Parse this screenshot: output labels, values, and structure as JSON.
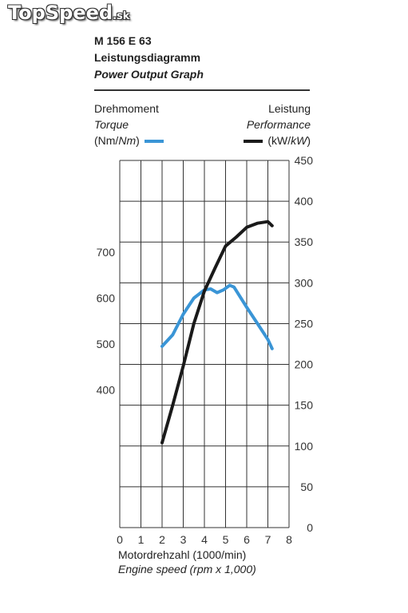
{
  "watermark": {
    "main": "TopSpeed",
    "tld": ".sk"
  },
  "header": {
    "engine": "M 156 E 63",
    "title_de": "Leistungsdiagramm",
    "title_en": "Power Output Graph"
  },
  "legend": {
    "left_de": "Drehmoment",
    "left_en": "Torque",
    "left_unit_prefix": "(Nm/",
    "left_unit_it": "Nm",
    "left_unit_suffix": ")",
    "right_de": "Leistung",
    "right_en": "Performance",
    "right_unit_prefix": "(kW/",
    "right_unit_it": "kW",
    "right_unit_suffix": ")"
  },
  "colors": {
    "torque": "#3a95d6",
    "power": "#1a1a1a",
    "grid": "#333333"
  },
  "chart_data": {
    "type": "line",
    "xlabel_de": "Motordrehzahl (1000/min)",
    "xlabel_en": "Engine speed (rpm x 1,000)",
    "xlim": [
      0,
      8
    ],
    "x_ticks": [
      "0",
      "1",
      "2",
      "3",
      "4",
      "5",
      "6",
      "7",
      "8"
    ],
    "y_left_lim": [
      100,
      900
    ],
    "y_left_ticks": [
      "400",
      "500",
      "600",
      "700"
    ],
    "y_right_lim": [
      0,
      450
    ],
    "y_right_ticks": [
      "0",
      "50",
      "100",
      "150",
      "200",
      "250",
      "300",
      "350",
      "400",
      "450"
    ],
    "grid": true,
    "series": [
      {
        "name": "Torque",
        "axis": "left",
        "x": [
          2.0,
          2.5,
          3.0,
          3.5,
          4.0,
          4.3,
          4.6,
          4.9,
          5.2,
          5.4,
          6.0,
          6.5,
          7.0,
          7.2
        ],
        "y": [
          495,
          520,
          565,
          600,
          618,
          620,
          612,
          618,
          628,
          624,
          580,
          545,
          510,
          490
        ]
      },
      {
        "name": "Performance",
        "axis": "right",
        "x": [
          2.0,
          2.5,
          3.0,
          3.5,
          4.0,
          4.5,
          5.0,
          5.5,
          6.0,
          6.5,
          7.0,
          7.2
        ],
        "y": [
          104,
          150,
          198,
          250,
          290,
          318,
          345,
          356,
          368,
          373,
          375,
          370
        ]
      }
    ]
  }
}
